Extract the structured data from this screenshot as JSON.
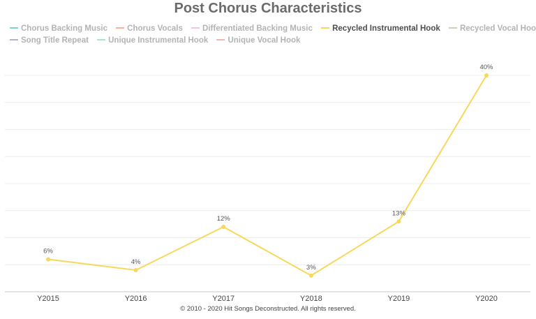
{
  "title": "Post Chorus Characteristics",
  "legend": {
    "rows": [
      [
        {
          "label": "Chorus Backing Music",
          "color": "#7fd4c8",
          "active": false
        },
        {
          "label": "Chorus Vocals",
          "color": "#f4b49a",
          "active": false
        },
        {
          "label": "Differentiated Backing Music",
          "color": "#f2c4e8",
          "active": false
        },
        {
          "label": "Recycled Instrumental Hook",
          "color": "#f6d85a",
          "active": true
        },
        {
          "label": "Recycled Vocal Hook",
          "color": "#c9d3b4",
          "active": false
        }
      ],
      [
        {
          "label": "Song Title Repeat",
          "color": "#b9b0c8",
          "active": false
        },
        {
          "label": "Unique Instrumental Hook",
          "color": "#a8e2d8",
          "active": false
        },
        {
          "label": "Unique Vocal Hook",
          "color": "#f0b8a6",
          "active": false
        }
      ]
    ]
  },
  "chart_data": {
    "type": "line",
    "title": "Post Chorus Characteristics",
    "categories": [
      "Y2015",
      "Y2016",
      "Y2017",
      "Y2018",
      "Y2019",
      "Y2020"
    ],
    "series": [
      {
        "name": "Recycled Instrumental Hook",
        "color": "#f6d85a",
        "values": [
          6,
          4,
          12,
          3,
          13,
          40
        ],
        "labels": [
          "6%",
          "4%",
          "12%",
          "3%",
          "13%",
          "40%"
        ]
      }
    ],
    "ylim": [
      0,
      40
    ],
    "grid": true,
    "legend_position": "top"
  },
  "footer": "© 2010 - 2020 Hit Songs Deconstructed. All rights reserved."
}
